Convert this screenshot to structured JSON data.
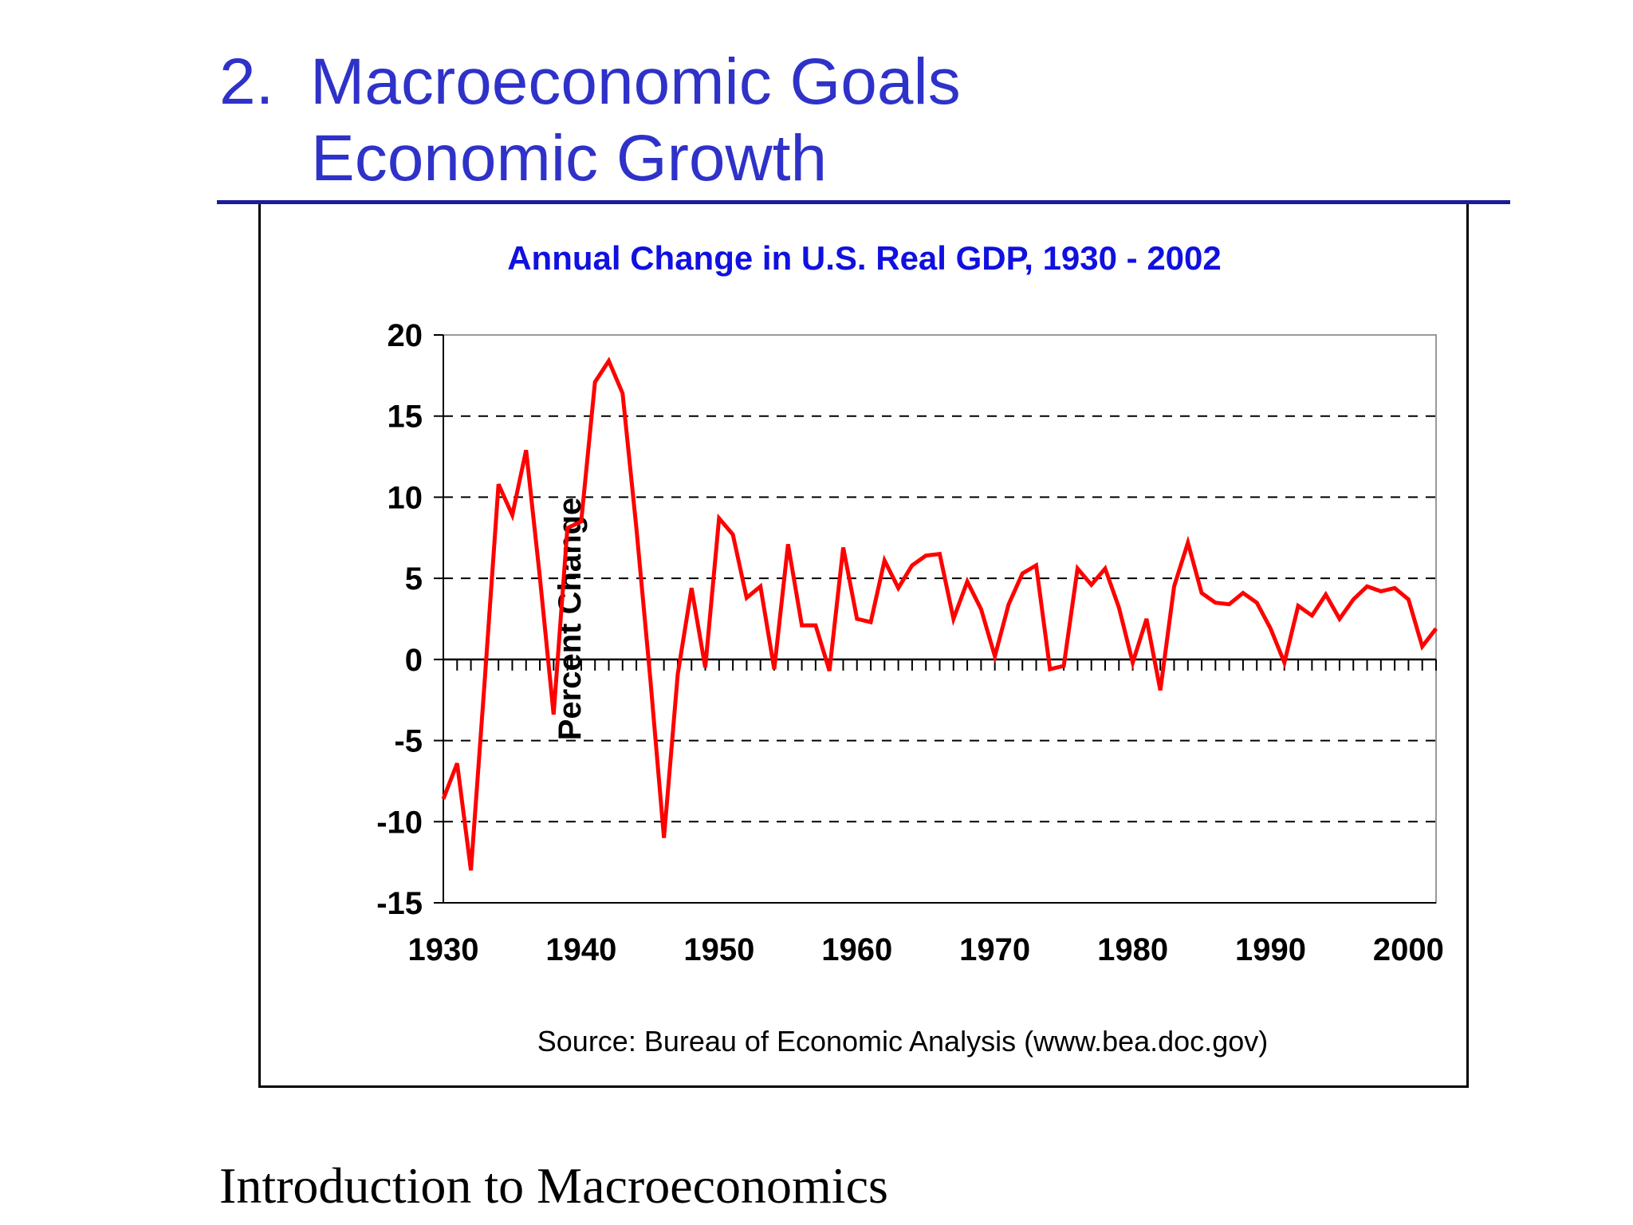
{
  "slide": {
    "title_line1": "2.  Macroeconomic Goals",
    "title_line2": "Economic Growth",
    "footer": "Introduction to Macroeconomics"
  },
  "colors": {
    "title": "#2f32c8",
    "rule": "#1c1c9a",
    "series": "#ff0000",
    "chart_title": "#1010e0"
  },
  "chart_data": {
    "type": "line",
    "title": "Annual Change in U.S. Real GDP, 1930 - 2002",
    "xlabel": "",
    "ylabel": "Percent Change",
    "source": "Source: Bureau of Economic Analysis (www.bea.doc.gov)",
    "xlim": [
      1930,
      2002
    ],
    "ylim": [
      -15,
      20
    ],
    "x_ticks": [
      "1930",
      "1940",
      "1950",
      "1960",
      "1970",
      "1980",
      "1990",
      "2000"
    ],
    "y_ticks": [
      "20",
      "15",
      "10",
      "5",
      "0",
      "-5",
      "-10",
      "-15"
    ],
    "grid": "dashed horizontal at 15, 10, 5, -5, -10",
    "legend": "none",
    "x": [
      1930,
      1931,
      1932,
      1933,
      1934,
      1935,
      1936,
      1937,
      1938,
      1939,
      1940,
      1941,
      1942,
      1943,
      1944,
      1945,
      1946,
      1947,
      1948,
      1949,
      1950,
      1951,
      1952,
      1953,
      1954,
      1955,
      1956,
      1957,
      1958,
      1959,
      1960,
      1961,
      1962,
      1963,
      1964,
      1965,
      1966,
      1967,
      1968,
      1969,
      1970,
      1971,
      1972,
      1973,
      1974,
      1975,
      1976,
      1977,
      1978,
      1979,
      1980,
      1981,
      1982,
      1983,
      1984,
      1985,
      1986,
      1987,
      1988,
      1989,
      1990,
      1991,
      1992,
      1993,
      1994,
      1995,
      1996,
      1997,
      1998,
      1999,
      2000,
      2001,
      2002
    ],
    "series": [
      {
        "values": [
          -8.6,
          -6.4,
          -13.0,
          -1.3,
          10.8,
          8.9,
          12.9,
          5.1,
          -3.4,
          8.1,
          8.5,
          17.1,
          18.4,
          16.4,
          8.1,
          -1.1,
          -11.0,
          -0.9,
          4.4,
          -0.5,
          8.7,
          7.7,
          3.8,
          4.5,
          -0.6,
          7.1,
          2.1,
          2.1,
          -0.7,
          6.9,
          2.5,
          2.3,
          6.1,
          4.4,
          5.8,
          6.4,
          6.5,
          2.5,
          4.8,
          3.1,
          0.2,
          3.4,
          5.3,
          5.8,
          -0.6,
          -0.4,
          5.6,
          4.6,
          5.6,
          3.2,
          -0.2,
          2.5,
          -1.9,
          4.5,
          7.2,
          4.1,
          3.5,
          3.4,
          4.1,
          3.5,
          1.9,
          -0.2,
          3.3,
          2.7,
          4.0,
          2.5,
          3.7,
          4.5,
          4.2,
          4.4,
          3.7,
          0.8,
          1.9
        ]
      }
    ]
  }
}
